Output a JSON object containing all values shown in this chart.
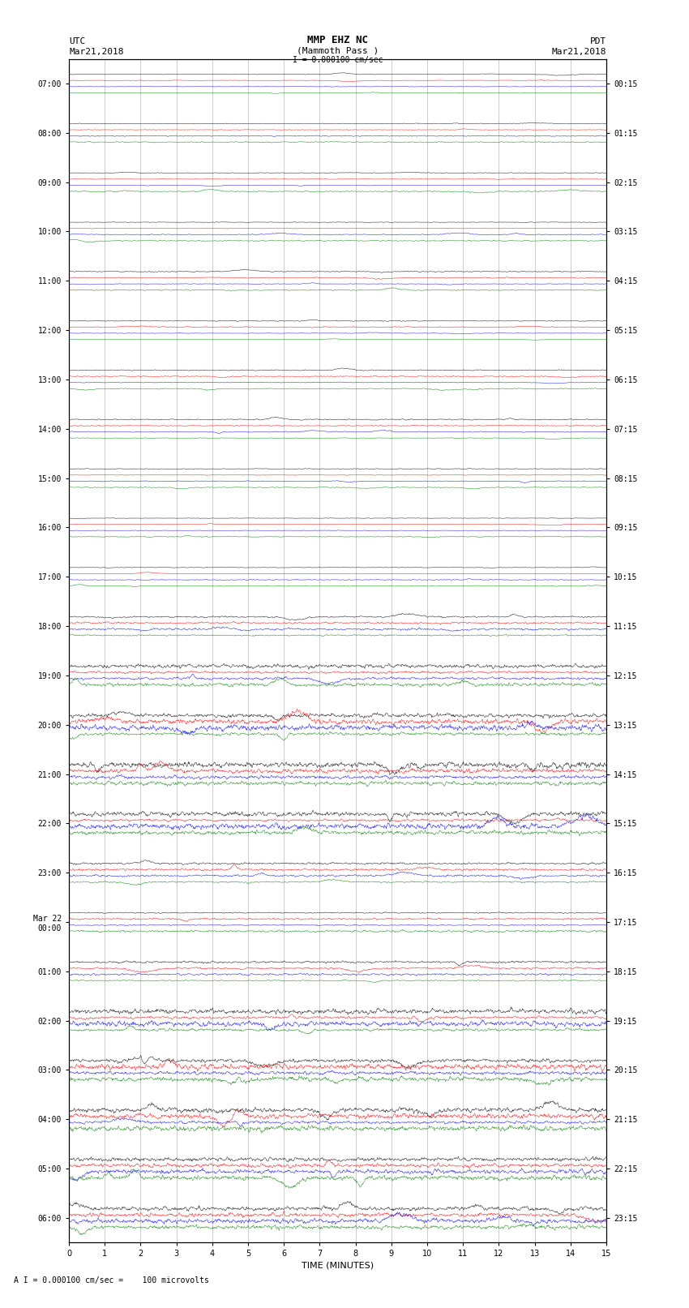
{
  "title_line1": "MMP EHZ NC",
  "title_line2": "(Mammoth Pass )",
  "title_line3": "I = 0.000100 cm/sec",
  "left_header_line1": "UTC",
  "left_header_line2": "Mar21,2018",
  "right_header_line1": "PDT",
  "right_header_line2": "Mar21,2018",
  "xlabel": "TIME (MINUTES)",
  "footer": "A I = 0.000100 cm/sec =    100 microvolts",
  "scale_label": "I = 0.000100 cm/sec",
  "utc_labels": [
    "07:00",
    "08:00",
    "09:00",
    "10:00",
    "11:00",
    "12:00",
    "13:00",
    "14:00",
    "15:00",
    "16:00",
    "17:00",
    "18:00",
    "19:00",
    "20:00",
    "21:00",
    "22:00",
    "23:00",
    "Mar 22\n00:00",
    "01:00",
    "02:00",
    "03:00",
    "04:00",
    "05:00",
    "06:00"
  ],
  "pdt_labels": [
    "00:15",
    "01:15",
    "02:15",
    "03:15",
    "04:15",
    "05:15",
    "06:15",
    "07:15",
    "08:15",
    "09:15",
    "10:15",
    "11:15",
    "12:15",
    "13:15",
    "14:15",
    "15:15",
    "16:15",
    "17:15",
    "18:15",
    "19:15",
    "20:15",
    "21:15",
    "22:15",
    "23:15"
  ],
  "colors": [
    "black",
    "red",
    "blue",
    "green"
  ],
  "n_rows": 24,
  "n_traces_per_row": 4,
  "x_min": 0,
  "x_max": 15,
  "x_ticks": [
    0,
    1,
    2,
    3,
    4,
    5,
    6,
    7,
    8,
    9,
    10,
    11,
    12,
    13,
    14,
    15
  ],
  "bg_color": "white",
  "amplitude_base": 0.035,
  "amplitude_vary": true,
  "seed": 42,
  "figwidth": 8.5,
  "figheight": 16.13
}
